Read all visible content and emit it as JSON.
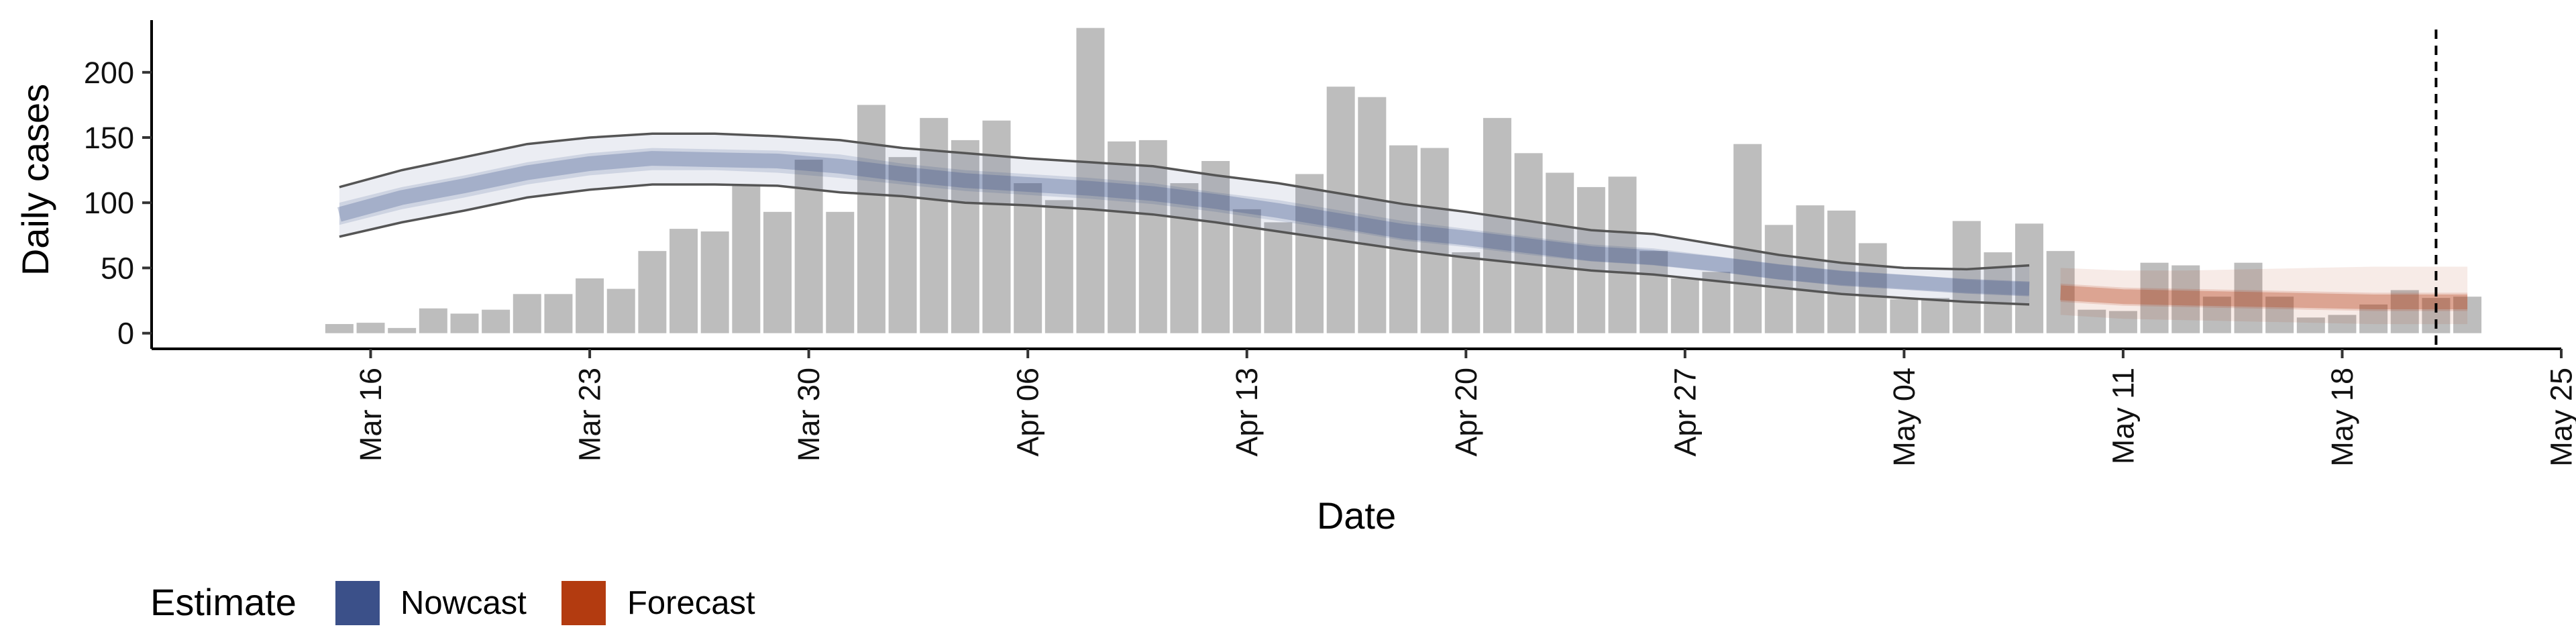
{
  "chart_data": {
    "type": "bar",
    "title": "",
    "xlabel": "Date",
    "ylabel": "Daily cases",
    "x_ticks": [
      "Mar 16",
      "Mar 23",
      "Mar 30",
      "Apr 06",
      "Apr 13",
      "Apr 20",
      "Apr 27",
      "May 04",
      "May 11",
      "May 18",
      "May 25"
    ],
    "x_tick_dates": [
      "2020-03-16",
      "2020-03-23",
      "2020-03-30",
      "2020-04-06",
      "2020-04-13",
      "2020-04-20",
      "2020-04-27",
      "2020-05-04",
      "2020-05-11",
      "2020-05-18",
      "2020-05-25"
    ],
    "xlim": [
      "2020-03-09",
      "2020-05-25"
    ],
    "y_ticks": [
      "0",
      "50",
      "100",
      "150",
      "200"
    ],
    "ylim": [
      -12,
      240
    ],
    "grid": false,
    "bars": {
      "dates": [
        "2020-03-15",
        "2020-03-16",
        "2020-03-17",
        "2020-03-18",
        "2020-03-19",
        "2020-03-20",
        "2020-03-21",
        "2020-03-22",
        "2020-03-23",
        "2020-03-24",
        "2020-03-25",
        "2020-03-26",
        "2020-03-27",
        "2020-03-28",
        "2020-03-29",
        "2020-03-30",
        "2020-03-31",
        "2020-04-01",
        "2020-04-02",
        "2020-04-03",
        "2020-04-04",
        "2020-04-05",
        "2020-04-06",
        "2020-04-07",
        "2020-04-08",
        "2020-04-09",
        "2020-04-10",
        "2020-04-11",
        "2020-04-12",
        "2020-04-13",
        "2020-04-14",
        "2020-04-15",
        "2020-04-16",
        "2020-04-17",
        "2020-04-18",
        "2020-04-19",
        "2020-04-20",
        "2020-04-21",
        "2020-04-22",
        "2020-04-23",
        "2020-04-24",
        "2020-04-25",
        "2020-04-26",
        "2020-04-27",
        "2020-04-28",
        "2020-04-29",
        "2020-04-30",
        "2020-05-01",
        "2020-05-02",
        "2020-05-03",
        "2020-05-04",
        "2020-05-05",
        "2020-05-06",
        "2020-05-07",
        "2020-05-08",
        "2020-05-09",
        "2020-05-10",
        "2020-05-11",
        "2020-05-12",
        "2020-05-13",
        "2020-05-14",
        "2020-05-15",
        "2020-05-16",
        "2020-05-17",
        "2020-05-18",
        "2020-05-19",
        "2020-05-20",
        "2020-05-21",
        "2020-05-22"
      ],
      "values": [
        7,
        8,
        4,
        19,
        15,
        18,
        30,
        30,
        42,
        34,
        63,
        80,
        78,
        113,
        93,
        133,
        93,
        175,
        135,
        165,
        148,
        163,
        115,
        102,
        234,
        147,
        148,
        115,
        132,
        95,
        85,
        122,
        189,
        181,
        144,
        142,
        62,
        165,
        138,
        123,
        112,
        120,
        63,
        42,
        47,
        145,
        83,
        98,
        94,
        69,
        26,
        27,
        86,
        62,
        84,
        63,
        18,
        17,
        54,
        52,
        28,
        54,
        28,
        12,
        14,
        22,
        33,
        27,
        28
      ],
      "color": "#bdbdbd"
    },
    "nowcast": {
      "name": "Nowcast",
      "color": "#3b5089",
      "dates": [
        "2020-03-15",
        "2020-03-17",
        "2020-03-19",
        "2020-03-21",
        "2020-03-23",
        "2020-03-25",
        "2020-03-27",
        "2020-03-29",
        "2020-03-31",
        "2020-04-02",
        "2020-04-04",
        "2020-04-06",
        "2020-04-08",
        "2020-04-10",
        "2020-04-12",
        "2020-04-14",
        "2020-04-16",
        "2020-04-18",
        "2020-04-20",
        "2020-04-22",
        "2020-04-24",
        "2020-04-26",
        "2020-04-28",
        "2020-04-30",
        "2020-05-02",
        "2020-05-04",
        "2020-05-06",
        "2020-05-08"
      ],
      "median": [
        91,
        104,
        113,
        123,
        130,
        134,
        133,
        132,
        128,
        122,
        117,
        114,
        111,
        107,
        101,
        94,
        86,
        78,
        73,
        67,
        61,
        58,
        53,
        47,
        42,
        39,
        36,
        34
      ],
      "inner_lower": [
        83,
        95,
        104,
        114,
        121,
        125,
        125,
        123,
        119,
        114,
        109,
        106,
        103,
        99,
        93,
        86,
        79,
        71,
        66,
        60,
        55,
        52,
        47,
        41,
        37,
        34,
        31,
        29
      ],
      "inner_upper": [
        100,
        112,
        121,
        131,
        138,
        142,
        141,
        140,
        137,
        130,
        125,
        122,
        119,
        115,
        108,
        102,
        94,
        86,
        80,
        74,
        68,
        65,
        59,
        53,
        48,
        45,
        41,
        39
      ],
      "outer_lower": [
        74,
        85,
        94,
        104,
        110,
        114,
        114,
        113,
        108,
        105,
        100,
        98,
        95,
        91,
        85,
        78,
        71,
        64,
        58,
        53,
        48,
        45,
        40,
        35,
        30,
        27,
        24,
        22
      ],
      "outer_upper": [
        112,
        125,
        135,
        145,
        150,
        153,
        153,
        151,
        148,
        142,
        138,
        134,
        131,
        128,
        121,
        115,
        107,
        99,
        93,
        86,
        79,
        76,
        68,
        60,
        54,
        50,
        49,
        52
      ]
    },
    "forecast": {
      "name": "Forecast",
      "color": "#b33b10",
      "dates": [
        "2020-05-09",
        "2020-05-11",
        "2020-05-13",
        "2020-05-15",
        "2020-05-17",
        "2020-05-19",
        "2020-05-21",
        "2020-05-22"
      ],
      "median": [
        31,
        28,
        27,
        26,
        25,
        24,
        24,
        24
      ],
      "inner_lower": [
        24,
        21,
        20,
        19,
        18,
        17,
        17,
        17
      ],
      "inner_upper": [
        38,
        35,
        34,
        33,
        32,
        31,
        31,
        31
      ],
      "outer_lower": [
        14,
        11,
        10,
        9,
        8,
        7,
        7,
        7
      ],
      "outer_upper": [
        50,
        48,
        48,
        49,
        50,
        51,
        51,
        51
      ]
    },
    "vline_date": "2020-05-21",
    "legend": {
      "title": "Estimate",
      "placement": "bottom-left",
      "entries": [
        {
          "label": "Nowcast",
          "color": "#3b5089"
        },
        {
          "label": "Forecast",
          "color": "#b33b10"
        }
      ]
    }
  }
}
